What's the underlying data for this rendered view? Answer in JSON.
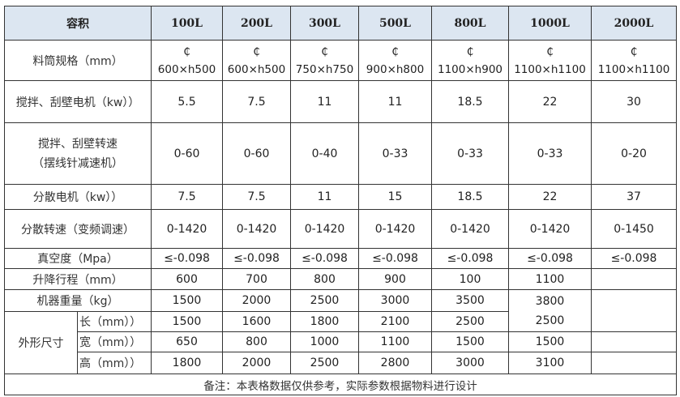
{
  "header": {
    "label": "容积",
    "volumes": [
      "100L",
      "200L",
      "300L",
      "500L",
      "800L",
      "1000L",
      "2000L"
    ]
  },
  "rows": {
    "barrel": {
      "label": "料筒规格（mm）",
      "symbol": "₵",
      "values": [
        "600×h500",
        "600×h500",
        "750×h750",
        "900×h800",
        "1100×h900",
        "1100×h1100",
        "1100×h1100"
      ]
    },
    "mix_motor": {
      "label": "搅拌、刮壁电机（kw））",
      "values": [
        "5.5",
        "7.5",
        "11",
        "11",
        "18.5",
        "22",
        "30"
      ]
    },
    "mix_speed": {
      "label_line1": "搅拌、刮壁转速",
      "label_line2": "（摆线针减速机）",
      "values": [
        "0-60",
        "0-60",
        "0-40",
        "0-33",
        "0-33",
        "0-33",
        "0-20"
      ]
    },
    "disp_motor": {
      "label": "分散电机（kw））",
      "values": [
        "7.5",
        "7.5",
        "11",
        "15",
        "18.5",
        "22",
        "37"
      ]
    },
    "disp_speed": {
      "label": "分散转速（变频调速）",
      "values": [
        "0-1420",
        "0-1420",
        "0-1420",
        "0-1420",
        "0-1420",
        "0-1420",
        "0-1450"
      ]
    },
    "vacuum": {
      "label": "真空度（Mpa）",
      "values": [
        "≤-0.098",
        "≤-0.098",
        "≤-0.098",
        "≤-0.098",
        "≤-0.098",
        "≤-0.098",
        "≤-0.098"
      ]
    },
    "lift": {
      "label": "升降行程（mm）",
      "values": [
        "600",
        "700",
        "800",
        "900",
        "100",
        "1100",
        ""
      ]
    },
    "weight": {
      "label": "机器重量（kg）",
      "values": [
        "1500",
        "2000",
        "2500",
        "3000",
        "3500",
        "3800",
        ""
      ]
    },
    "dims": {
      "label": "外形尺寸",
      "length": {
        "label": "长（mm））",
        "values": [
          "1500",
          "1600",
          "1800",
          "2100",
          "2500",
          "2500",
          ""
        ]
      },
      "width": {
        "label": "宽（mm））",
        "values": [
          "650",
          "800",
          "1000",
          "1100",
          "1500",
          "1500",
          ""
        ]
      },
      "height": {
        "label": "高（mm））",
        "values": [
          "1800",
          "2000",
          "2500",
          "2800",
          "3000",
          "3100",
          ""
        ]
      }
    }
  },
  "note": "备注：本表格数据仅供参考，实际参数根据物料进行设计",
  "colors": {
    "header_bg": "#dce6f1",
    "border": "#333333"
  }
}
